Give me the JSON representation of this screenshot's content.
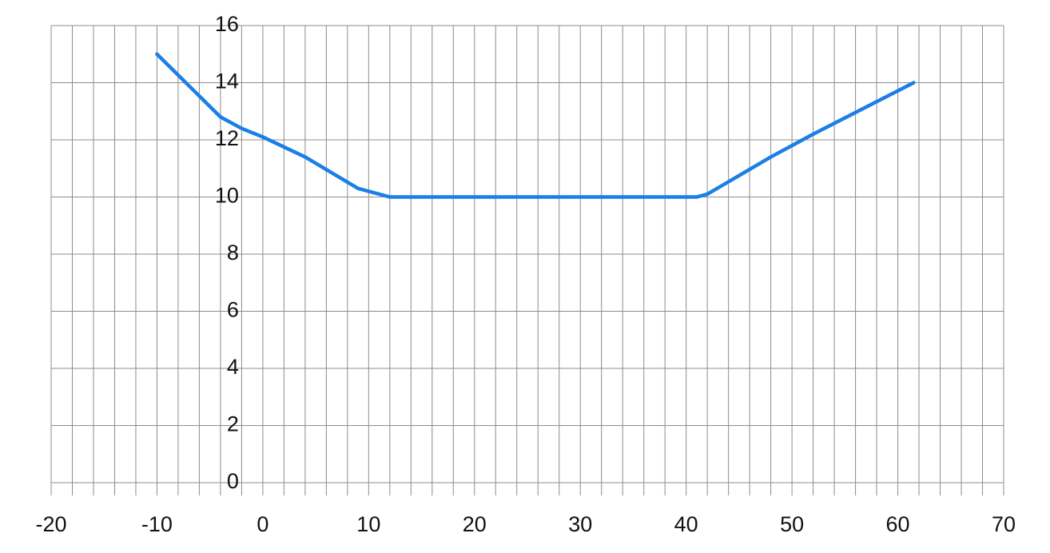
{
  "chart_data": {
    "type": "line",
    "x": [
      -10,
      -7,
      -4,
      -2,
      0,
      4,
      9,
      12,
      20,
      30,
      41,
      42,
      48,
      52,
      61.5
    ],
    "series": [
      {
        "color": "#1a7fe6",
        "values": [
          15,
          13.9,
          12.8,
          12.4,
          12.1,
          11.4,
          10.3,
          10,
          10,
          10,
          10,
          10.1,
          11.4,
          12.2,
          14
        ]
      }
    ],
    "xlim": [
      -20,
      70
    ],
    "xticks": [
      -20,
      -10,
      0,
      10,
      20,
      30,
      40,
      50,
      60,
      70
    ],
    "xminorticks": [
      -20,
      -18,
      -16,
      -14,
      -12,
      -10,
      -8,
      -6,
      -4,
      -2,
      0,
      2,
      4,
      6,
      8,
      10,
      12,
      14,
      16,
      18,
      20,
      22,
      24,
      26,
      28,
      30,
      32,
      34,
      36,
      38,
      40,
      42,
      44,
      46,
      48,
      50,
      52,
      54,
      56,
      58,
      60,
      62,
      64,
      66,
      68,
      70
    ],
    "ylim": [
      0,
      16
    ],
    "yticks": [
      0,
      2,
      4,
      6,
      8,
      10,
      12,
      14,
      16
    ],
    "grid": true
  }
}
